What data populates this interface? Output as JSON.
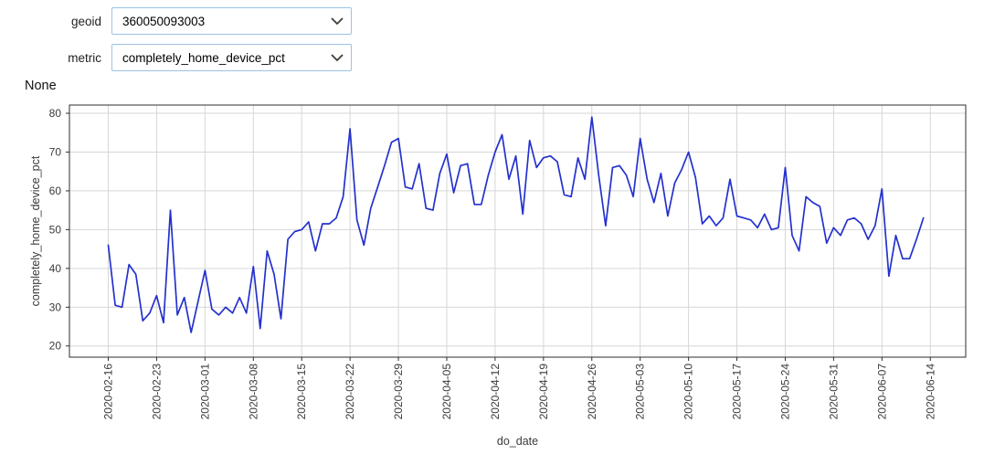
{
  "widgets": {
    "geoid": {
      "label": "geoid",
      "value": "360050093003"
    },
    "metric": {
      "label": "metric",
      "value": "completely_home_device_pct"
    }
  },
  "status_text": "None",
  "colors": {
    "line": "#2431cd",
    "grid": "#d6d6d6",
    "spine": "#2e2e2e",
    "tick_text": "#3a3a3a",
    "select_border": "#9cc2e5"
  },
  "chart_data": {
    "type": "line",
    "title": "",
    "xlabel": "do_date",
    "ylabel": "completely_home_device_pct",
    "x_frequency": "daily",
    "x_start": "2020-02-16",
    "x_end": "2020-06-13",
    "x_tick_labels": [
      "2020-02-16",
      "2020-02-23",
      "2020-03-01",
      "2020-03-08",
      "2020-03-15",
      "2020-03-22",
      "2020-03-29",
      "2020-04-05",
      "2020-04-12",
      "2020-04-19",
      "2020-04-26",
      "2020-05-03",
      "2020-05-10",
      "2020-05-17",
      "2020-05-24",
      "2020-05-31",
      "2020-06-07",
      "2020-06-14"
    ],
    "y_ticks": [
      20,
      30,
      40,
      50,
      60,
      70,
      80
    ],
    "ylim": [
      17.1,
      82.1
    ],
    "grid": true,
    "legend": "none",
    "values": [
      46,
      30.5,
      30,
      41,
      38.5,
      26.5,
      28.5,
      33,
      26,
      55,
      28,
      32.5,
      23.5,
      31.5,
      39.5,
      29.5,
      28,
      30,
      28.5,
      32.5,
      28.5,
      40.5,
      24.5,
      44.5,
      38.5,
      27,
      47.5,
      49.5,
      50,
      52,
      44.5,
      51.5,
      51.5,
      53,
      58.5,
      76,
      52.5,
      46,
      55.5,
      61,
      66.5,
      72.5,
      73.5,
      61,
      60.5,
      67,
      55.5,
      55,
      64.5,
      69.5,
      59.5,
      66.5,
      67,
      56.5,
      56.5,
      64,
      70,
      74.5,
      63,
      69,
      54,
      73,
      66,
      68.5,
      69,
      67.5,
      59,
      58.5,
      68.5,
      63,
      79,
      64,
      51,
      66,
      66.5,
      64,
      58.5,
      73.5,
      63,
      57,
      64.5,
      53.5,
      62,
      65.5,
      70,
      63.5,
      51.5,
      53.5,
      51,
      53,
      63,
      53.5,
      53,
      52.5,
      50.5,
      54,
      50,
      50.5,
      66,
      48.5,
      44.5,
      58.5,
      57,
      56,
      46.5,
      50.5,
      48.5,
      52.5,
      53,
      51.5,
      47.5,
      51,
      60.5,
      38,
      48.5,
      42.5,
      42.5,
      47.5,
      53
    ]
  }
}
